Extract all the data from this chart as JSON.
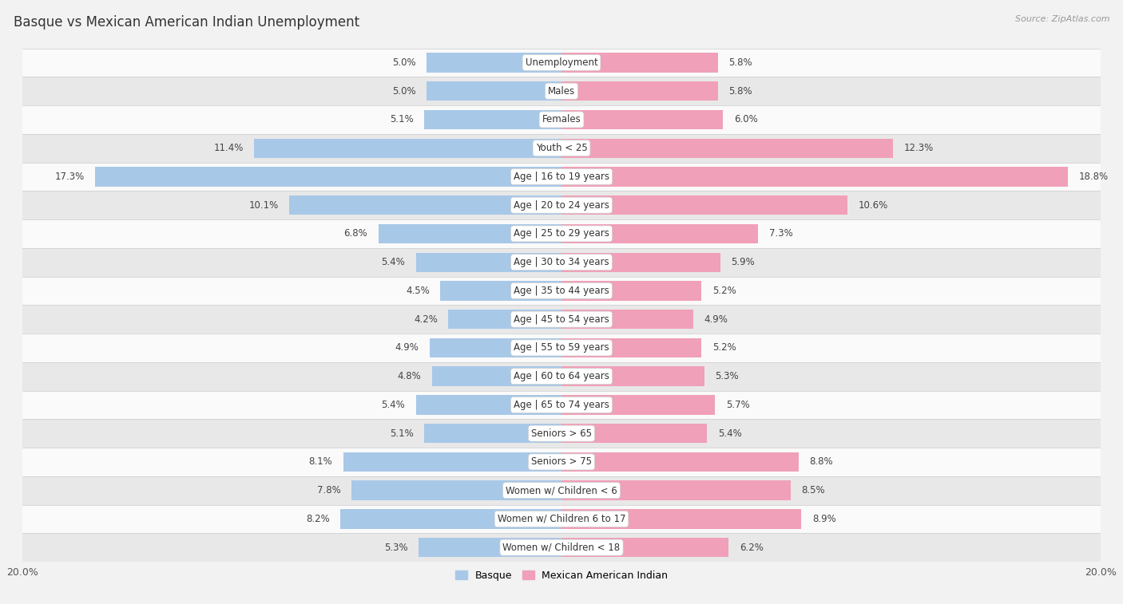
{
  "title": "Basque vs Mexican American Indian Unemployment",
  "source": "Source: ZipAtlas.com",
  "categories": [
    "Unemployment",
    "Males",
    "Females",
    "Youth < 25",
    "Age | 16 to 19 years",
    "Age | 20 to 24 years",
    "Age | 25 to 29 years",
    "Age | 30 to 34 years",
    "Age | 35 to 44 years",
    "Age | 45 to 54 years",
    "Age | 55 to 59 years",
    "Age | 60 to 64 years",
    "Age | 65 to 74 years",
    "Seniors > 65",
    "Seniors > 75",
    "Women w/ Children < 6",
    "Women w/ Children 6 to 17",
    "Women w/ Children < 18"
  ],
  "basque": [
    5.0,
    5.0,
    5.1,
    11.4,
    17.3,
    10.1,
    6.8,
    5.4,
    4.5,
    4.2,
    4.9,
    4.8,
    5.4,
    5.1,
    8.1,
    7.8,
    8.2,
    5.3
  ],
  "mexican": [
    5.8,
    5.8,
    6.0,
    12.3,
    18.8,
    10.6,
    7.3,
    5.9,
    5.2,
    4.9,
    5.2,
    5.3,
    5.7,
    5.4,
    8.8,
    8.5,
    8.9,
    6.2
  ],
  "basque_color": "#a8c8e8",
  "mexican_color": "#f0a0b8",
  "background_color": "#f2f2f2",
  "row_bg_light": "#fafafa",
  "row_bg_dark": "#e8e8e8",
  "max_value": 20.0,
  "legend_basque": "Basque",
  "legend_mexican": "Mexican American Indian",
  "bar_height": 0.68,
  "label_fontsize": 8.5,
  "value_fontsize": 8.5,
  "title_fontsize": 12,
  "source_fontsize": 8
}
